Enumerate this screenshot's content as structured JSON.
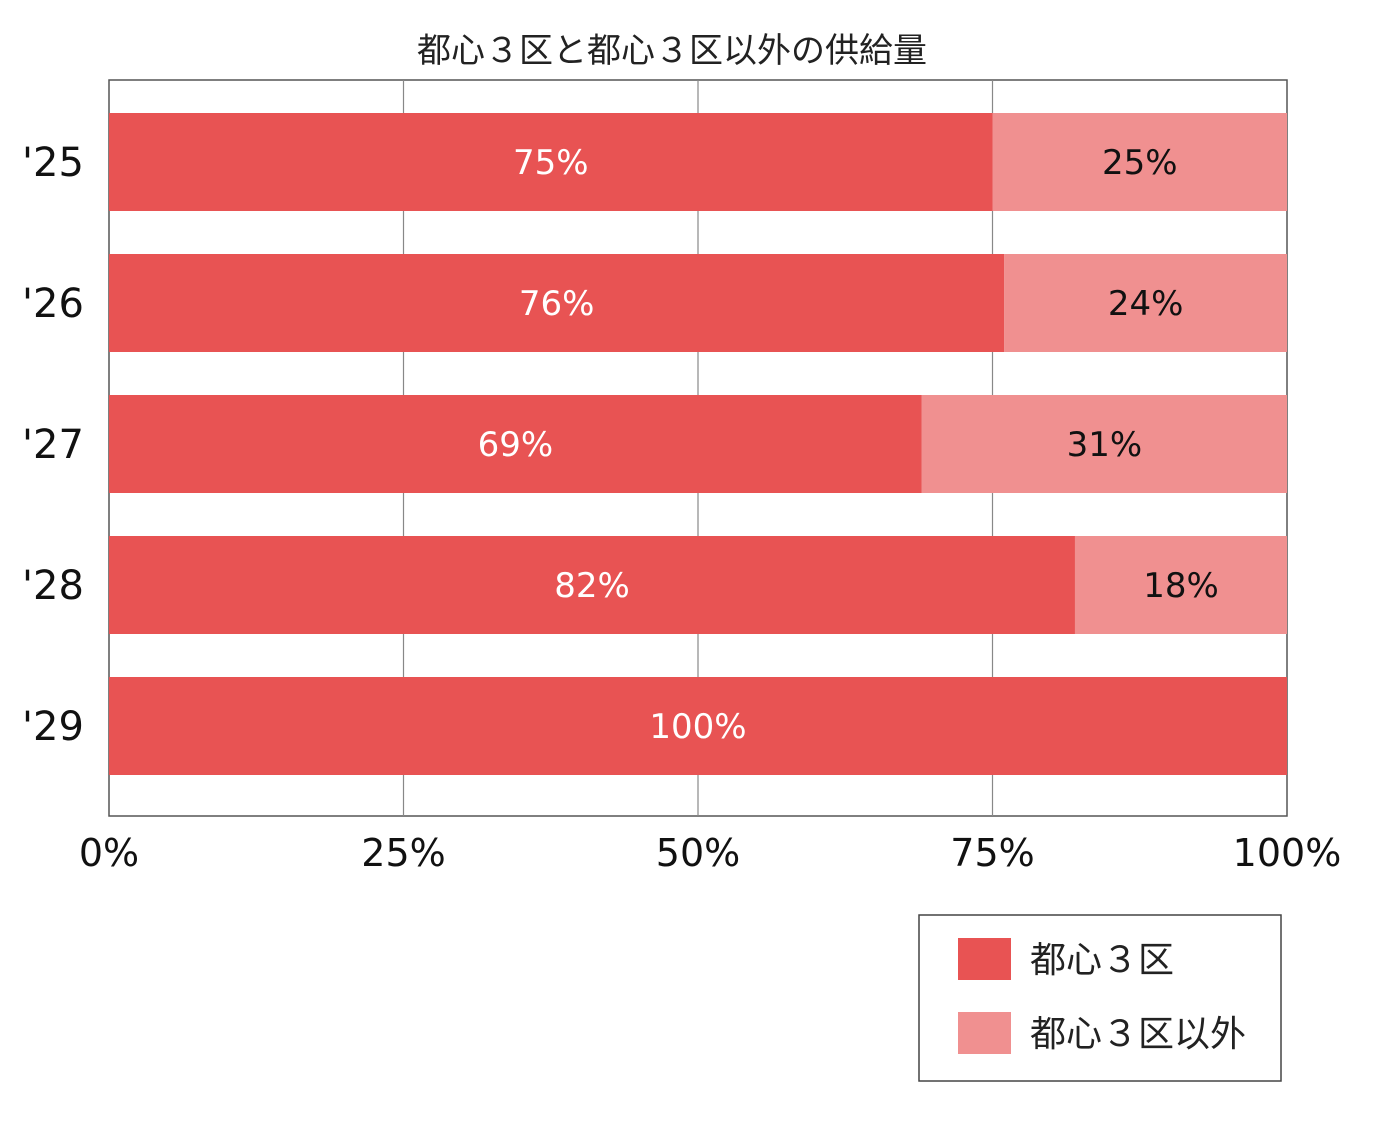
{
  "chart_data": {
    "type": "bar",
    "orientation": "horizontal",
    "stacked": true,
    "title": "都心３区と都心３区以外の供給量",
    "categories": [
      "'25",
      "'26",
      "'27",
      "'28",
      "'29"
    ],
    "series": [
      {
        "name": "都心３区",
        "values": [
          75,
          76,
          69,
          82,
          100
        ],
        "labels": [
          "75%",
          "76%",
          "69%",
          "82%",
          "100%"
        ],
        "color": "#e85353",
        "label_color": "#ffffff"
      },
      {
        "name": "都心３区以外",
        "values": [
          25,
          24,
          31,
          18,
          0
        ],
        "labels": [
          "25%",
          "24%",
          "31%",
          "18%",
          ""
        ],
        "color": "#f09090",
        "label_color": "#111111"
      }
    ],
    "xlim": [
      0,
      100
    ],
    "xticks": [
      0,
      25,
      50,
      75,
      100
    ],
    "xtick_labels": [
      "0%",
      "25%",
      "50%",
      "75%",
      "100%"
    ],
    "grid": true,
    "legend_position": "bottom-right"
  }
}
